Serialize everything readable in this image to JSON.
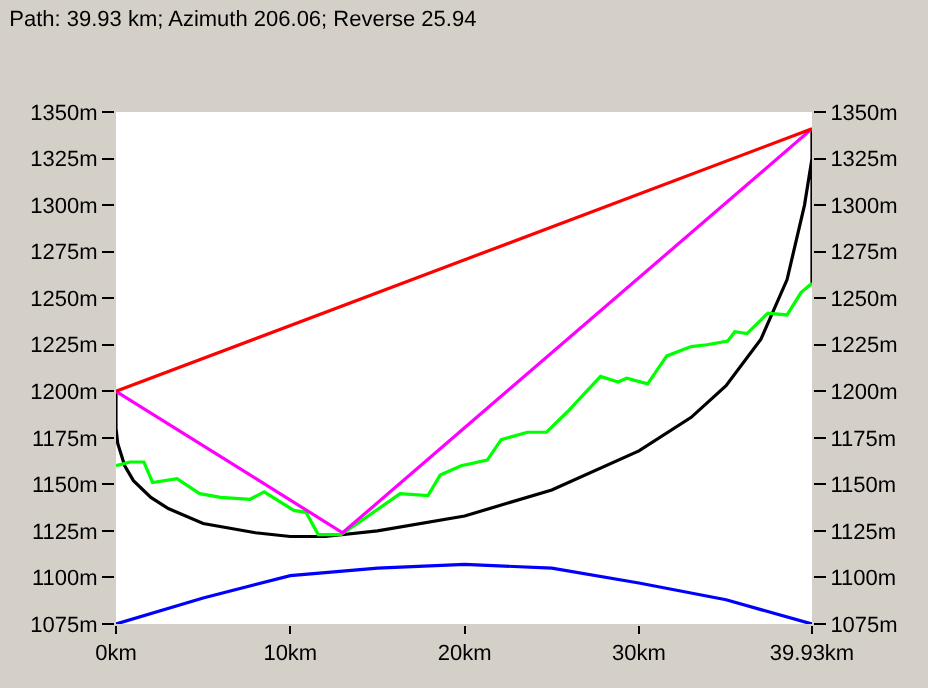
{
  "chart_data": {
    "type": "line",
    "title": "Path: 39.93 km; Azimuth 206.06; Reverse 25.94",
    "xlim": [
      0,
      39.93
    ],
    "xticks": [
      {
        "value": 0,
        "label": "0km"
      },
      {
        "value": 10,
        "label": "10km"
      },
      {
        "value": 20,
        "label": "20km"
      },
      {
        "value": 30,
        "label": "30km"
      },
      {
        "value": 39.93,
        "label": "39.93km"
      }
    ],
    "ylim": [
      1075,
      1350
    ],
    "yticks": [
      {
        "value": 1075,
        "label": "1075m"
      },
      {
        "value": 1100,
        "label": "1100m"
      },
      {
        "value": 1125,
        "label": "1125m"
      },
      {
        "value": 1150,
        "label": "1150m"
      },
      {
        "value": 1175,
        "label": "1175m"
      },
      {
        "value": 1200,
        "label": "1200m"
      },
      {
        "value": 1225,
        "label": "1225m"
      },
      {
        "value": 1250,
        "label": "1250m"
      },
      {
        "value": 1275,
        "label": "1275m"
      },
      {
        "value": 1300,
        "label": "1300m"
      },
      {
        "value": 1325,
        "label": "1325m"
      },
      {
        "value": 1350,
        "label": "1350m"
      }
    ],
    "y2lim": [
      1075,
      1350
    ],
    "y2ticks": [
      {
        "value": 1075,
        "label": "1075m"
      },
      {
        "value": 1100,
        "label": "1100m"
      },
      {
        "value": 1125,
        "label": "1125m"
      },
      {
        "value": 1150,
        "label": "1150m"
      },
      {
        "value": 1175,
        "label": "1175m"
      },
      {
        "value": 1200,
        "label": "1200m"
      },
      {
        "value": 1225,
        "label": "1225m"
      },
      {
        "value": 1250,
        "label": "1250m"
      },
      {
        "value": 1275,
        "label": "1275m"
      },
      {
        "value": 1300,
        "label": "1300m"
      },
      {
        "value": 1325,
        "label": "1325m"
      },
      {
        "value": 1350,
        "label": "1350m"
      }
    ],
    "marker": "none",
    "line_style": "solid",
    "series": [
      {
        "color": "#0000ff",
        "x": [
          0,
          5,
          10,
          15,
          20,
          25,
          30,
          35,
          39.93
        ],
        "values": [
          1075,
          1089,
          1101,
          1105,
          1107,
          1105,
          1097,
          1088,
          1075
        ]
      },
      {
        "color": "#000000",
        "x": [
          0,
          0,
          0.1,
          0.5,
          1,
          2,
          3,
          5,
          8,
          10,
          12,
          15,
          20,
          25,
          30,
          33,
          35,
          37,
          38.5,
          39.5,
          39.93,
          39.93,
          39.93
        ],
        "values": [
          1200,
          1180,
          1172,
          1160,
          1152,
          1143,
          1137,
          1129,
          1124,
          1122,
          1122,
          1125,
          1133,
          1147,
          1168,
          1186,
          1203,
          1228,
          1260,
          1300,
          1325,
          1341,
          1258
        ]
      },
      {
        "color": "#00ff00",
        "x": [
          0,
          0.8,
          1.6,
          2.1,
          3.5,
          4.8,
          6.0,
          7.7,
          8.5,
          10.2,
          10.9,
          11.6,
          12.9,
          14.0,
          16.3,
          17.9,
          18.6,
          19.8,
          21.3,
          22.1,
          23.6,
          24.7,
          25.9,
          26.9,
          27.8,
          28.8,
          29.3,
          30.5,
          31.6,
          33.0,
          33.9,
          35.1,
          35.5,
          36.2,
          37.4,
          38.5,
          39.3,
          39.93
        ],
        "values": [
          1160,
          1162,
          1162,
          1151,
          1153,
          1145,
          1143,
          1142,
          1146,
          1136,
          1135,
          1123,
          1123,
          1130,
          1145,
          1144,
          1155,
          1160,
          1163,
          1174,
          1178,
          1178,
          1189,
          1199,
          1208,
          1205,
          1207,
          1204,
          1219,
          1224,
          1225,
          1227,
          1232,
          1231,
          1242,
          1241,
          1253,
          1258
        ]
      },
      {
        "color": "#ff00ff",
        "x": [
          0,
          13,
          39.93
        ],
        "values": [
          1200,
          1124,
          1341
        ]
      },
      {
        "color": "#ff0000",
        "x": [
          0,
          39.93
        ],
        "values": [
          1200,
          1341
        ]
      }
    ]
  }
}
